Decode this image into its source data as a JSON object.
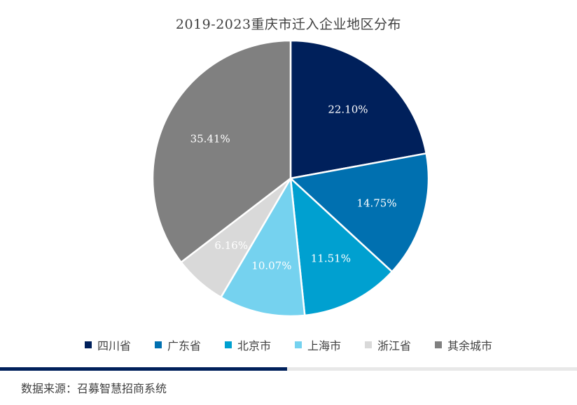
{
  "chart_data": {
    "type": "pie",
    "title": "2019-2023重庆市迁入企业地区分布",
    "categories": [
      "四川省",
      "广东省",
      "北京市",
      "上海市",
      "浙江省",
      "其余城市"
    ],
    "values": [
      22.1,
      14.75,
      11.51,
      10.07,
      6.16,
      35.41
    ],
    "labels": [
      "22.10%",
      "14.75%",
      "11.51%",
      "10.07%",
      "6.16%",
      "35.41%"
    ],
    "colors": [
      "#00205b",
      "#0070b0",
      "#00a0d0",
      "#75d2ef",
      "#d9d9d9",
      "#808080"
    ],
    "legend_position": "bottom"
  },
  "source": "数据来源：召募智慧招商系统"
}
